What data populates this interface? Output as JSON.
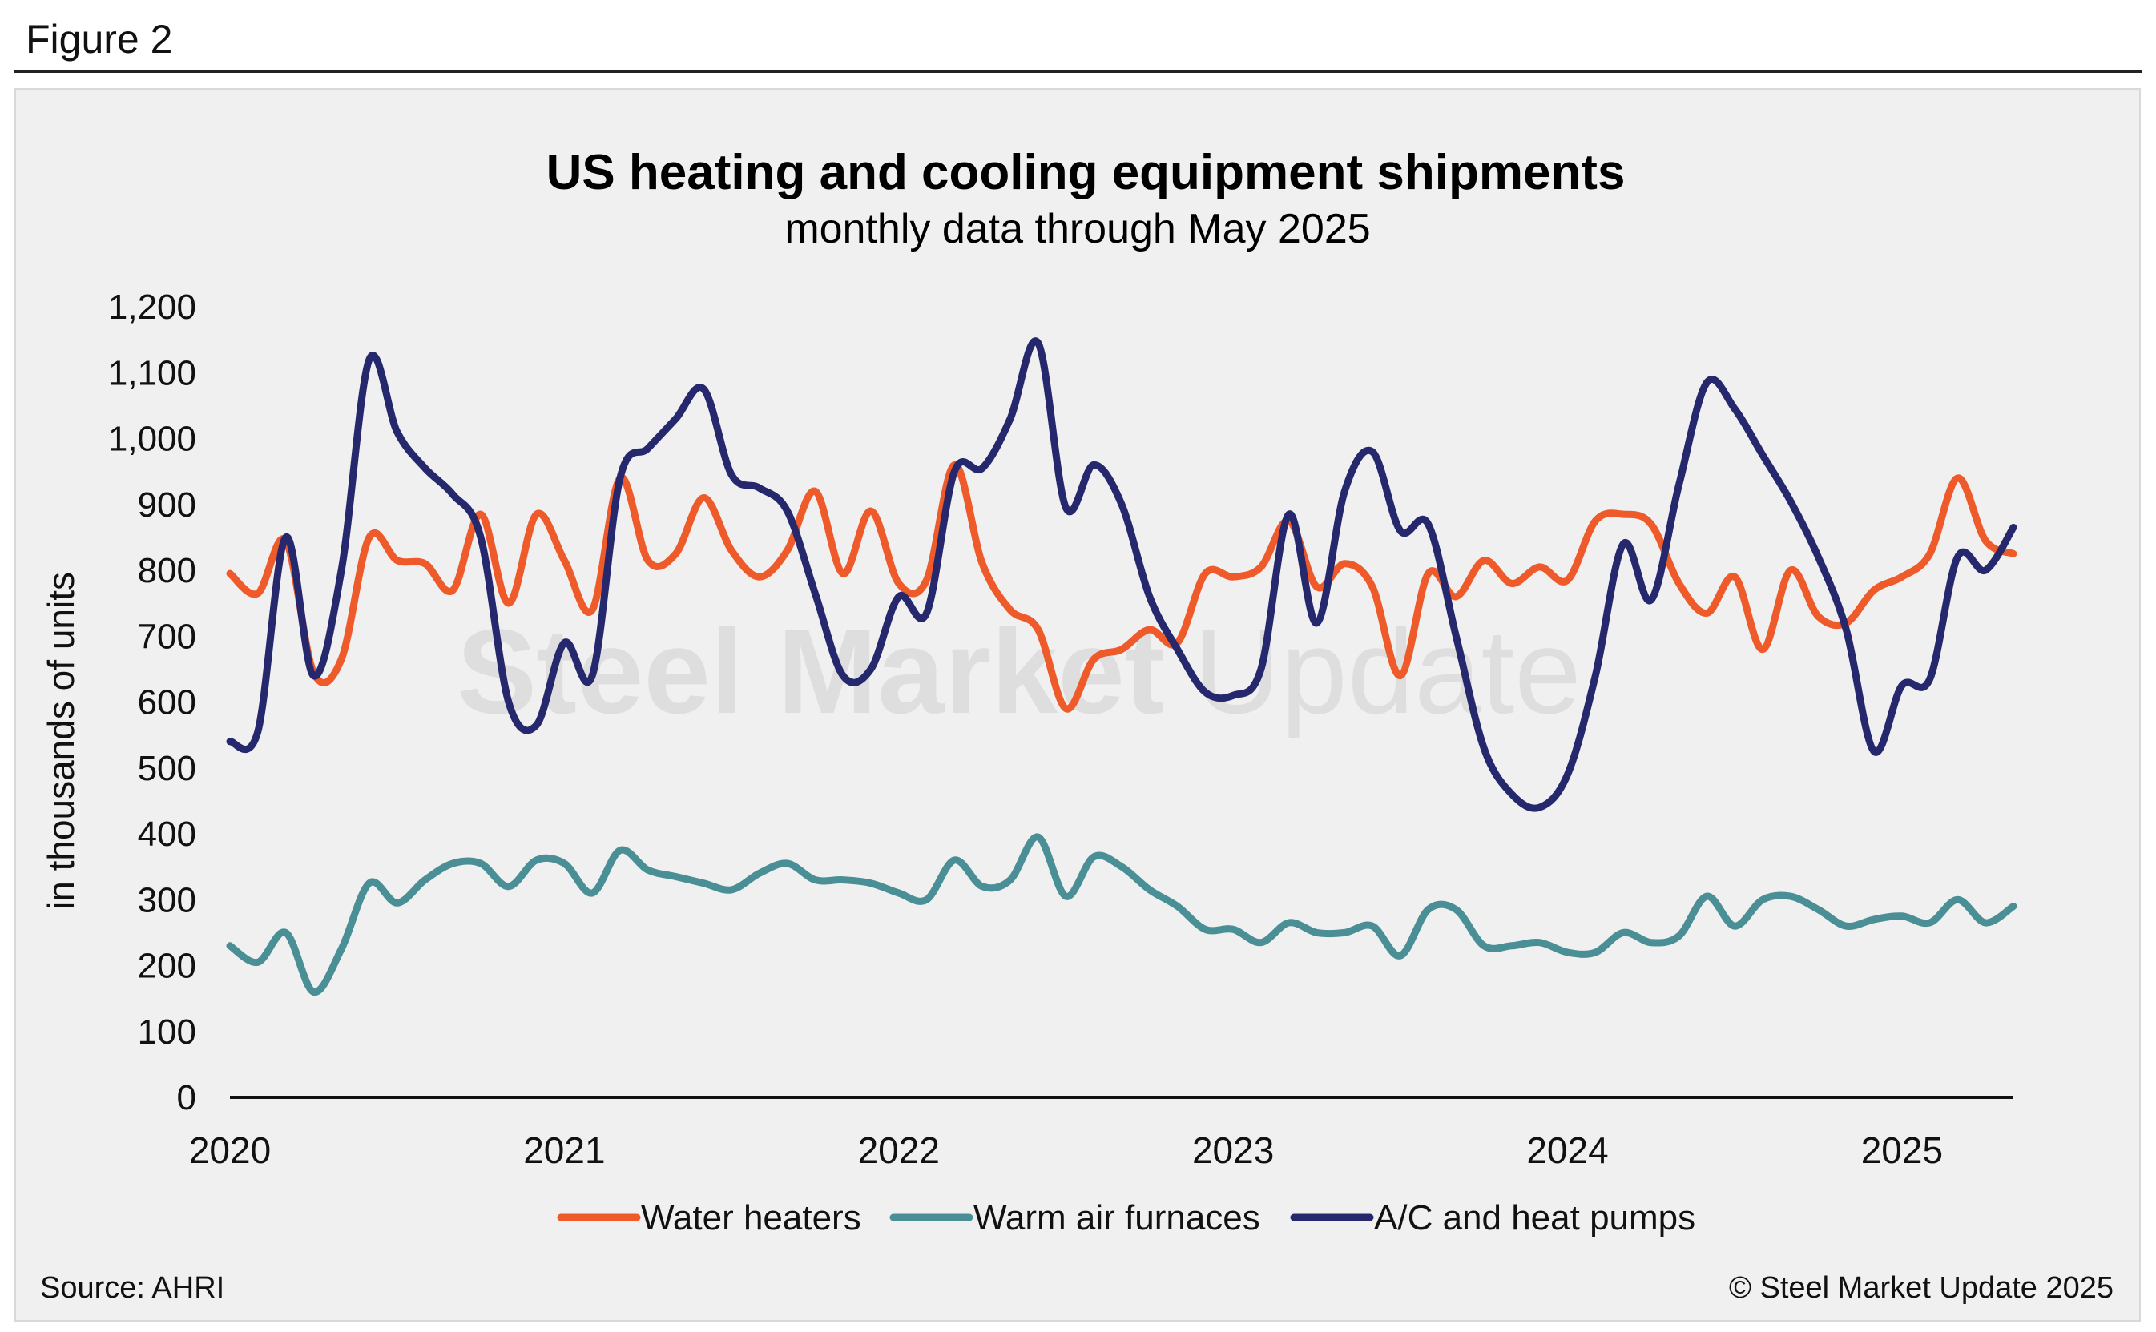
{
  "figure_label": "Figure 2",
  "source": "Source: AHRI",
  "copyright": "© Steel Market Update 2025",
  "watermark": {
    "word1": "Steel Market",
    "word2": "Update"
  },
  "chart_data": {
    "type": "line",
    "title": "US heating and cooling equipment shipments",
    "subtitle": "monthly data through May 2025",
    "xlabel": "",
    "ylabel": "in thousands of units",
    "x_start": "2020-01",
    "x_end": "2025-05",
    "x_ticks": [
      "2020",
      "2021",
      "2022",
      "2023",
      "2024",
      "2025"
    ],
    "ylim": [
      0,
      1200
    ],
    "y_ticks": [
      "0",
      "100",
      "200",
      "300",
      "400",
      "500",
      "600",
      "700",
      "800",
      "900",
      "1,000",
      "1,100",
      "1,200"
    ],
    "grid": false,
    "legend_position": "bottom",
    "series": [
      {
        "name": "Water heaters",
        "color": "#ee5a2a",
        "values": [
          795,
          765,
          845,
          645,
          665,
          850,
          815,
          810,
          770,
          885,
          750,
          885,
          815,
          740,
          940,
          815,
          825,
          910,
          830,
          790,
          830,
          920,
          795,
          890,
          780,
          785,
          960,
          810,
          740,
          710,
          590,
          665,
          680,
          710,
          690,
          795,
          790,
          805,
          875,
          775,
          810,
          775,
          640,
          795,
          760,
          815,
          780,
          805,
          785,
          875,
          885,
          870,
          780,
          735,
          790,
          680,
          800,
          730,
          720,
          770,
          790,
          825,
          940,
          845,
          825
        ]
      },
      {
        "name": "Warm air furnaces",
        "color": "#4a8f96",
        "values": [
          230,
          205,
          250,
          160,
          225,
          325,
          295,
          330,
          355,
          355,
          320,
          360,
          355,
          310,
          375,
          345,
          335,
          325,
          315,
          340,
          355,
          330,
          330,
          325,
          310,
          300,
          360,
          320,
          330,
          395,
          305,
          365,
          350,
          315,
          290,
          255,
          255,
          235,
          265,
          250,
          250,
          260,
          215,
          285,
          285,
          230,
          230,
          235,
          220,
          220,
          250,
          235,
          245,
          305,
          260,
          300,
          305,
          285,
          260,
          270,
          275,
          265,
          300,
          265,
          290
        ]
      },
      {
        "name": "A/C and heat pumps",
        "color": "#26286e",
        "values": [
          540,
          555,
          850,
          640,
          800,
          1120,
          1010,
          955,
          915,
          850,
          600,
          565,
          690,
          640,
          940,
          985,
          1030,
          1075,
          945,
          925,
          890,
          765,
          640,
          650,
          760,
          735,
          950,
          955,
          1030,
          1145,
          895,
          960,
          900,
          760,
          680,
          615,
          610,
          650,
          885,
          720,
          920,
          980,
          860,
          870,
          700,
          530,
          460,
          440,
          490,
          640,
          840,
          755,
          930,
          1085,
          1045,
          975,
          905,
          820,
          710,
          525,
          625,
          635,
          820,
          800,
          865
        ]
      }
    ]
  }
}
